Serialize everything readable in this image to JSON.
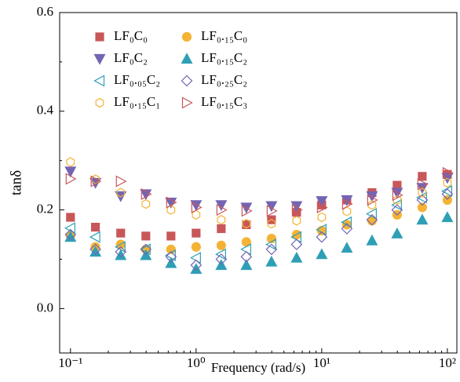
{
  "chart_data": {
    "type": "scatter",
    "xlabel": "Frequency (rad/s)",
    "ylabel": "tanδ",
    "x": [
      0.1,
      0.158,
      0.251,
      0.398,
      0.631,
      1,
      1.585,
      2.512,
      3.981,
      6.31,
      10,
      15.85,
      25.12,
      39.81,
      63.1,
      100
    ],
    "xscale": "log",
    "xlim": [
      0.082,
      119
    ],
    "xticks": [
      {
        "value": 0.1,
        "label": "10⁻¹"
      },
      {
        "value": 1,
        "label": "10⁰"
      },
      {
        "value": 10,
        "label": "10¹"
      },
      {
        "value": 100,
        "label": "10²"
      }
    ],
    "ylim": [
      -0.09,
      0.6
    ],
    "yticks": [
      {
        "value": 0,
        "label": "0.0"
      },
      {
        "value": 0.2,
        "label": "0.2"
      },
      {
        "value": 0.4,
        "label": "0.4"
      },
      {
        "value": 0.6,
        "label": "0.6"
      }
    ],
    "legend": "upper left",
    "series": [
      {
        "name": "LF₀C₀",
        "color": "#c8575a",
        "marker": "square",
        "filled": true,
        "values": [
          0.185,
          0.165,
          0.153,
          0.147,
          0.147,
          0.153,
          0.162,
          0.17,
          0.18,
          0.195,
          0.21,
          0.22,
          0.235,
          0.25,
          0.268,
          0.272
        ]
      },
      {
        "name": "LF₀.₁₅C₀",
        "color": "#f5b335",
        "marker": "circle",
        "filled": true,
        "values": [
          0.148,
          0.125,
          0.13,
          0.12,
          0.12,
          0.125,
          0.128,
          0.135,
          0.142,
          0.15,
          0.158,
          0.17,
          0.178,
          0.19,
          0.205,
          0.22
        ]
      },
      {
        "name": "LF₀C₂",
        "color": "#7465b3",
        "marker": "triangle-down",
        "filled": true,
        "values": [
          0.278,
          0.255,
          0.228,
          0.232,
          0.215,
          0.21,
          0.21,
          0.205,
          0.208,
          0.208,
          0.218,
          0.22,
          0.228,
          0.235,
          0.245,
          0.265
        ]
      },
      {
        "name": "LF₀.₁₅C₂",
        "color": "#2e9fb5",
        "marker": "triangle-up",
        "filled": true,
        "values": [
          0.145,
          0.115,
          0.108,
          0.108,
          0.092,
          0.08,
          0.088,
          0.088,
          0.095,
          0.103,
          0.11,
          0.123,
          0.138,
          0.152,
          0.18,
          0.185
        ]
      },
      {
        "name": "LF₀.₀₅C₂",
        "color": "#2e9fb5",
        "marker": "triangle-left",
        "filled": false,
        "values": [
          0.163,
          0.145,
          0.125,
          0.12,
          0.108,
          0.103,
          0.11,
          0.12,
          0.13,
          0.145,
          0.16,
          0.175,
          0.192,
          0.21,
          0.225,
          0.238
        ]
      },
      {
        "name": "LF₀.₂₅C₂",
        "color": "#7465b3",
        "marker": "diamond",
        "filled": false,
        "values": [
          0.15,
          0.12,
          0.115,
          0.12,
          0.105,
          0.088,
          0.1,
          0.105,
          0.12,
          0.13,
          0.145,
          0.162,
          0.18,
          0.2,
          0.22,
          0.232
        ]
      },
      {
        "name": "LF₀.₁₅C₁",
        "color": "#f5b335",
        "marker": "hexagon",
        "filled": false,
        "values": [
          0.297,
          0.262,
          0.235,
          0.212,
          0.2,
          0.19,
          0.18,
          0.172,
          0.172,
          0.178,
          0.185,
          0.197,
          0.21,
          0.22,
          0.235,
          0.255
        ]
      },
      {
        "name": "LF₀.₁₅C₃",
        "color": "#c8575a",
        "marker": "triangle-right",
        "filled": false,
        "values": [
          0.263,
          0.258,
          0.258,
          0.232,
          0.215,
          0.205,
          0.2,
          0.198,
          0.198,
          0.2,
          0.205,
          0.212,
          0.22,
          0.23,
          0.252,
          0.275
        ]
      }
    ]
  }
}
